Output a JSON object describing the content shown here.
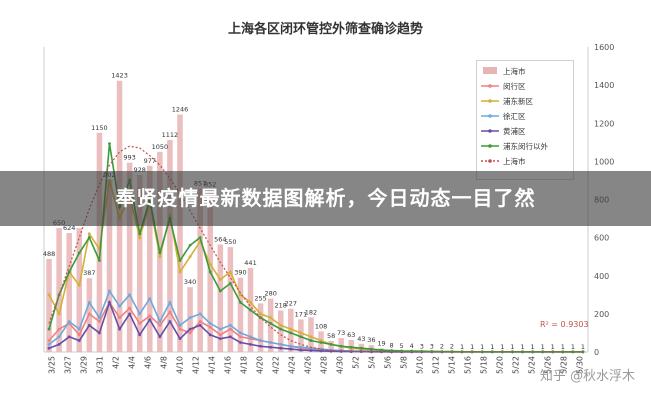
{
  "chart_data": {
    "type": "bar+line",
    "title": "上海各区闭环管控外筛查确诊趋势",
    "ylim": [
      0,
      1600
    ],
    "y_ticks": [
      "0",
      "200",
      "400",
      "600",
      "800",
      "1000",
      "1200",
      "1400",
      "1600"
    ],
    "x_labels": [
      "3/25",
      "3/27",
      "3/29",
      "3/31",
      "4/2",
      "4/4",
      "4/6",
      "4/8",
      "4/10",
      "4/12",
      "4/14",
      "4/16",
      "4/18",
      "4/20",
      "4/22",
      "4/24",
      "4/26",
      "4/28",
      "4/30",
      "5/2",
      "5/4",
      "5/6",
      "5/8",
      "5/10",
      "5/12",
      "5/14",
      "5/16",
      "5/18",
      "5/20",
      "5/22",
      "5/24",
      "5/26",
      "5/28",
      "5/30"
    ],
    "bar_series": {
      "name": "上海市",
      "color": "#e8b4b4",
      "values": [
        488,
        650,
        624,
        650,
        387,
        1150,
        902,
        1423,
        993,
        928,
        977,
        1050,
        1112,
        1246,
        340,
        857,
        852,
        564,
        550,
        390,
        441,
        255,
        280,
        218,
        227,
        171,
        182,
        108,
        58,
        73,
        63,
        43,
        36,
        19,
        8,
        5,
        4,
        3,
        3,
        2,
        2,
        1,
        1,
        1,
        1,
        1,
        1,
        1,
        1,
        1,
        1,
        1,
        1,
        1
      ]
    },
    "line_series": [
      {
        "name": "闵行区",
        "color": "#f08080",
        "values": [
          60,
          120,
          150,
          90,
          200,
          160,
          260,
          180,
          230,
          150,
          190,
          140,
          210,
          120,
          100,
          160,
          130,
          90,
          120,
          80,
          70,
          60,
          50,
          40,
          30,
          20,
          15,
          10,
          8,
          5,
          4,
          3,
          2,
          2,
          1,
          1,
          1,
          1,
          1,
          1,
          1,
          1,
          1,
          1,
          1,
          1,
          1,
          1,
          1,
          1,
          1,
          1,
          1,
          1
        ]
      },
      {
        "name": "浦东新区",
        "color": "#d4b037",
        "values": [
          300,
          200,
          420,
          350,
          620,
          540,
          900,
          700,
          820,
          600,
          780,
          500,
          720,
          420,
          500,
          580,
          460,
          380,
          420,
          300,
          260,
          200,
          180,
          140,
          120,
          100,
          80,
          60,
          40,
          30,
          20,
          15,
          10,
          8,
          5,
          4,
          3,
          2,
          2,
          1,
          1,
          1,
          1,
          1,
          1,
          1,
          1,
          1,
          1,
          1,
          1,
          1,
          1,
          1
        ]
      },
      {
        "name": "徐汇区",
        "color": "#6fa8dc",
        "values": [
          40,
          80,
          160,
          120,
          260,
          180,
          320,
          240,
          300,
          200,
          280,
          160,
          260,
          140,
          180,
          200,
          150,
          120,
          140,
          100,
          80,
          60,
          50,
          40,
          30,
          25,
          20,
          15,
          10,
          8,
          5,
          4,
          3,
          2,
          1,
          1,
          1,
          1,
          1,
          1,
          1,
          1,
          1,
          1,
          1,
          1,
          1,
          1,
          1,
          1,
          1,
          1,
          1,
          1
        ]
      },
      {
        "name": "黄浦区",
        "color": "#674ea7",
        "values": [
          20,
          40,
          80,
          60,
          140,
          100,
          260,
          120,
          200,
          90,
          170,
          80,
          160,
          70,
          120,
          140,
          90,
          70,
          80,
          50,
          40,
          30,
          25,
          20,
          15,
          10,
          8,
          6,
          4,
          3,
          2,
          2,
          1,
          1,
          1,
          1,
          1,
          1,
          1,
          1,
          1,
          1,
          1,
          1,
          1,
          1,
          1,
          1,
          1,
          1,
          1,
          1,
          1,
          1
        ]
      },
      {
        "name": "浦东闵行以外",
        "color": "#3c9a3c",
        "values": [
          120,
          300,
          420,
          520,
          600,
          480,
          1093,
          760,
          900,
          620,
          800,
          520,
          700,
          480,
          560,
          600,
          420,
          320,
          360,
          260,
          220,
          180,
          150,
          120,
          100,
          80,
          60,
          50,
          40,
          30,
          25,
          20,
          15,
          10,
          8,
          6,
          5,
          4,
          3,
          2,
          2,
          1,
          1,
          1,
          1,
          1,
          1,
          1,
          1,
          1,
          1,
          1,
          1,
          1
        ]
      },
      {
        "name": "上海市",
        "color": "#c0504d",
        "dashed": true,
        "values": [
          150,
          300,
          450,
          600,
          750,
          880,
          980,
          1050,
          1080,
          1070,
          1030,
          980,
          910,
          830,
          740,
          650,
          560,
          470,
          390,
          310,
          240,
          180,
          130,
          90,
          60,
          40,
          25,
          15,
          8,
          5,
          3,
          2,
          1,
          1,
          1,
          1,
          1,
          1,
          1,
          1,
          1,
          1,
          1,
          1,
          1,
          1,
          1,
          1,
          1,
          1,
          1,
          1,
          1,
          1
        ]
      }
    ],
    "bar_value_labels": [
      {
        "i": 0,
        "text": "488"
      },
      {
        "i": 1,
        "text": "650"
      },
      {
        "i": 2,
        "text": "624"
      },
      {
        "i": 4,
        "text": "387"
      },
      {
        "i": 5,
        "text": "1150"
      },
      {
        "i": 6,
        "text": "902"
      },
      {
        "i": 7,
        "text": "1423"
      },
      {
        "i": 8,
        "text": "993"
      },
      {
        "i": 9,
        "text": "928"
      },
      {
        "i": 10,
        "text": "977"
      },
      {
        "i": 11,
        "text": "1050"
      },
      {
        "i": 12,
        "text": "1112"
      },
      {
        "i": 13,
        "text": "1246"
      },
      {
        "i": 14,
        "text": "340"
      },
      {
        "i": 15,
        "text": "857"
      },
      {
        "i": 16,
        "text": "852"
      },
      {
        "i": 17,
        "text": "564"
      },
      {
        "i": 18,
        "text": "550"
      },
      {
        "i": 19,
        "text": "390"
      },
      {
        "i": 20,
        "text": "441"
      },
      {
        "i": 21,
        "text": "255"
      },
      {
        "i": 22,
        "text": "280"
      },
      {
        "i": 23,
        "text": "218"
      },
      {
        "i": 24,
        "text": "227"
      },
      {
        "i": 25,
        "text": "171"
      },
      {
        "i": 26,
        "text": "182"
      },
      {
        "i": 27,
        "text": "108"
      },
      {
        "i": 28,
        "text": "58"
      },
      {
        "i": 29,
        "text": "73"
      },
      {
        "i": 30,
        "text": "63"
      },
      {
        "i": 31,
        "text": "43"
      },
      {
        "i": 32,
        "text": "36"
      },
      {
        "i": 33,
        "text": "19"
      },
      {
        "i": 34,
        "text": "8"
      },
      {
        "i": 35,
        "text": "5"
      },
      {
        "i": 36,
        "text": "4"
      },
      {
        "i": 37,
        "text": "3"
      },
      {
        "i": 38,
        "text": "3"
      },
      {
        "i": 39,
        "text": "2"
      },
      {
        "i": 40,
        "text": "2"
      },
      {
        "i": 41,
        "text": "1"
      },
      {
        "i": 42,
        "text": "1"
      },
      {
        "i": 43,
        "text": "1"
      },
      {
        "i": 44,
        "text": "1"
      },
      {
        "i": 45,
        "text": "1"
      },
      {
        "i": 46,
        "text": "1"
      },
      {
        "i": 47,
        "text": "1"
      },
      {
        "i": 48,
        "text": "1"
      },
      {
        "i": 49,
        "text": "1"
      },
      {
        "i": 50,
        "text": "1"
      },
      {
        "i": 51,
        "text": "1"
      },
      {
        "i": 52,
        "text": "1"
      },
      {
        "i": 53,
        "text": "1"
      }
    ],
    "legend_placement": "top-right",
    "grid": false,
    "annotation_r2": "R² = 0.9303"
  },
  "overlay": {
    "banner_text": "奉贤疫情最新数据图解析，今日动态一目了然",
    "watermark": "知乎 @秋水浮木"
  },
  "colors": {
    "banner_bg": "#3c3c3c",
    "banner_text": "#ffffff",
    "axis": "#cccccc",
    "text": "#333333"
  }
}
